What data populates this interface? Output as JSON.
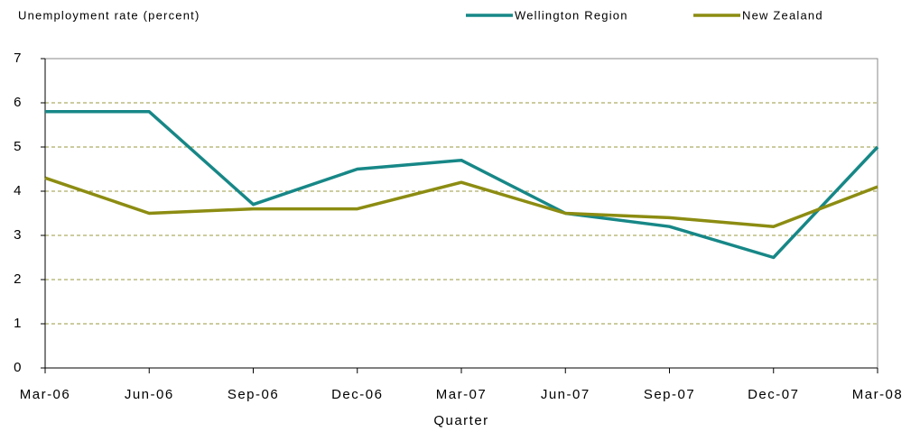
{
  "chart_data": {
    "type": "line",
    "y_label": "Unemployment rate (percent)",
    "x_label": "Quarter",
    "categories": [
      "Mar-06",
      "Jun-06",
      "Sep-06",
      "Dec-06",
      "Mar-07",
      "Jun-07",
      "Sep-07",
      "Dec-07",
      "Mar-08"
    ],
    "series": [
      {
        "name": "Wellington Region",
        "color": "#178787",
        "values": [
          5.8,
          5.8,
          3.7,
          4.5,
          4.7,
          3.5,
          3.2,
          2.5,
          5.0
        ]
      },
      {
        "name": "New Zealand",
        "color": "#8c8c12",
        "values": [
          4.3,
          3.5,
          3.6,
          3.6,
          4.2,
          3.5,
          3.4,
          3.2,
          4.1
        ]
      }
    ],
    "ylim": [
      0,
      7
    ],
    "yticks": [
      0,
      1,
      2,
      3,
      4,
      5,
      6,
      7
    ],
    "grid": true,
    "legend": "top-right"
  }
}
